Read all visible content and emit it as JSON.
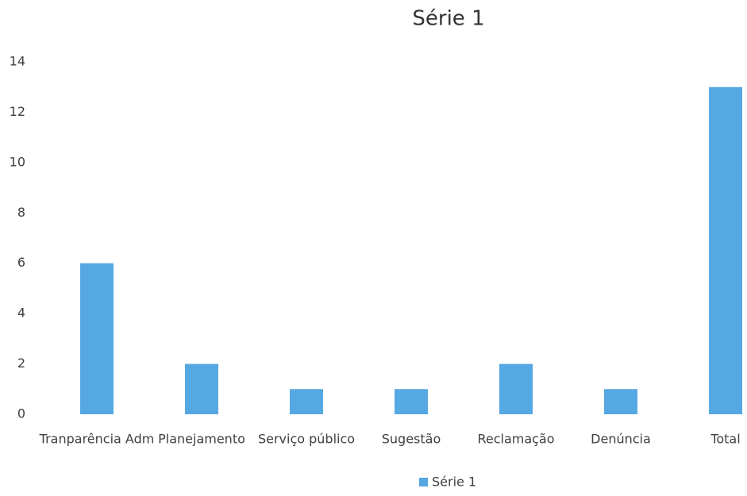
{
  "chart_data": {
    "type": "bar",
    "title": "Série 1",
    "categories": [
      "Tranparência Adm",
      "Planejamento",
      "Serviço público",
      "Sugestão",
      "Reclamação",
      "Denúncia",
      "Total"
    ],
    "series": [
      {
        "name": "Série 1",
        "color": "#55a8e2",
        "values": [
          6,
          2,
          1,
          1,
          2,
          1,
          13
        ]
      }
    ],
    "ylim": [
      0,
      14
    ],
    "yticks": [
      0,
      2,
      4,
      6,
      8,
      10,
      12,
      14
    ],
    "grid": false,
    "legend": "bottom"
  }
}
